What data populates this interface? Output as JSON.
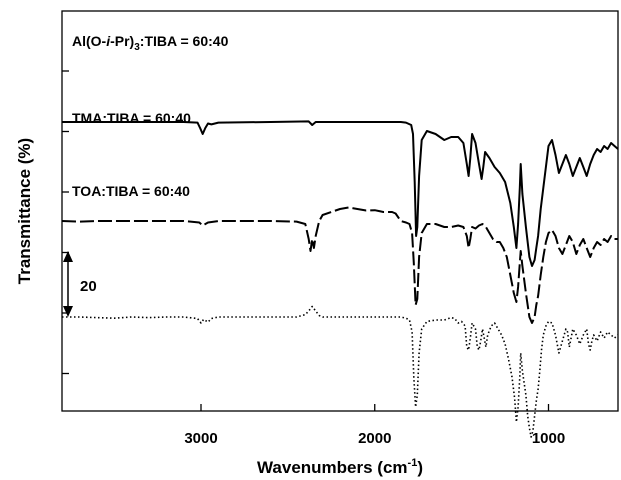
{
  "chart_data": {
    "type": "line",
    "title": "",
    "xlabel": "Wavenumbers (cm",
    "xlabel_sup": "-1",
    "xlabel_end": ")",
    "ylabel": "Transmittance (%)",
    "xlim": [
      3800,
      600
    ],
    "x_reversed": true,
    "x_ticks": [
      3000,
      2000,
      1000
    ],
    "x_tick_labels": [
      "3000",
      "2000",
      "1000"
    ],
    "y_tick_count": 6,
    "scale_bar_label": "20",
    "scale_bar_value": 20,
    "grid": false,
    "series": [
      {
        "label_parts": [
          "Al(O-",
          "i",
          "-Pr)",
          "3",
          ":TIBA = 60:40"
        ],
        "style": "solid",
        "color": "#000000",
        "points": [
          [
            3800,
            60
          ],
          [
            3600,
            60
          ],
          [
            3400,
            60
          ],
          [
            3100,
            60
          ],
          [
            3020,
            59.8
          ],
          [
            3005,
            58
          ],
          [
            2990,
            56
          ],
          [
            2975,
            58
          ],
          [
            2960,
            59.5
          ],
          [
            2940,
            59.2
          ],
          [
            2900,
            59.8
          ],
          [
            2600,
            60
          ],
          [
            2380,
            60.2
          ],
          [
            2360,
            59
          ],
          [
            2340,
            60
          ],
          [
            2200,
            60
          ],
          [
            2000,
            60
          ],
          [
            1850,
            60
          ],
          [
            1820,
            59.8
          ],
          [
            1790,
            59
          ],
          [
            1780,
            56
          ],
          [
            1770,
            40
          ],
          [
            1762,
            22
          ],
          [
            1755,
            25
          ],
          [
            1745,
            42
          ],
          [
            1730,
            54
          ],
          [
            1700,
            57
          ],
          [
            1650,
            56
          ],
          [
            1600,
            54
          ],
          [
            1560,
            55
          ],
          [
            1520,
            55
          ],
          [
            1490,
            53
          ],
          [
            1470,
            46
          ],
          [
            1460,
            42
          ],
          [
            1450,
            48
          ],
          [
            1440,
            56
          ],
          [
            1420,
            53
          ],
          [
            1400,
            46
          ],
          [
            1385,
            41
          ],
          [
            1375,
            45
          ],
          [
            1365,
            50
          ],
          [
            1340,
            48
          ],
          [
            1310,
            45
          ],
          [
            1280,
            43
          ],
          [
            1250,
            40
          ],
          [
            1220,
            33
          ],
          [
            1200,
            25
          ],
          [
            1185,
            18
          ],
          [
            1175,
            26
          ],
          [
            1165,
            38
          ],
          [
            1160,
            46
          ],
          [
            1150,
            36
          ],
          [
            1130,
            25
          ],
          [
            1110,
            15
          ],
          [
            1095,
            12
          ],
          [
            1080,
            14
          ],
          [
            1070,
            18
          ],
          [
            1060,
            22
          ],
          [
            1045,
            31
          ],
          [
            1030,
            38
          ],
          [
            1015,
            45
          ],
          [
            1000,
            52
          ],
          [
            980,
            54
          ],
          [
            960,
            49
          ],
          [
            940,
            43
          ],
          [
            920,
            46
          ],
          [
            900,
            49
          ],
          [
            880,
            46
          ],
          [
            860,
            42
          ],
          [
            840,
            45
          ],
          [
            820,
            48
          ],
          [
            800,
            45
          ],
          [
            780,
            42
          ],
          [
            760,
            46
          ],
          [
            740,
            49
          ],
          [
            720,
            51
          ],
          [
            700,
            50
          ],
          [
            680,
            52
          ],
          [
            660,
            51
          ],
          [
            640,
            53
          ],
          [
            620,
            52
          ],
          [
            600,
            51
          ]
        ]
      },
      {
        "label": "TMA:TIBA = 60:40",
        "style": "dashed",
        "color": "#000000",
        "points": [
          [
            3800,
            42
          ],
          [
            3700,
            41.8
          ],
          [
            3600,
            42
          ],
          [
            3400,
            42
          ],
          [
            3100,
            42
          ],
          [
            3010,
            41.5
          ],
          [
            2990,
            40.5
          ],
          [
            2960,
            41.5
          ],
          [
            2900,
            42
          ],
          [
            2600,
            42
          ],
          [
            2450,
            41.8
          ],
          [
            2400,
            41
          ],
          [
            2380,
            36
          ],
          [
            2370,
            32
          ],
          [
            2360,
            36
          ],
          [
            2350,
            33
          ],
          [
            2340,
            37
          ],
          [
            2320,
            42
          ],
          [
            2300,
            44
          ],
          [
            2250,
            45
          ],
          [
            2200,
            46
          ],
          [
            2150,
            46.5
          ],
          [
            2100,
            46
          ],
          [
            2050,
            45.5
          ],
          [
            2000,
            45.6
          ],
          [
            1950,
            45
          ],
          [
            1900,
            45
          ],
          [
            1880,
            44.5
          ],
          [
            1850,
            42
          ],
          [
            1820,
            41.5
          ],
          [
            1800,
            41
          ],
          [
            1785,
            38
          ],
          [
            1775,
            28
          ],
          [
            1765,
            14
          ],
          [
            1755,
            16
          ],
          [
            1745,
            30
          ],
          [
            1730,
            38
          ],
          [
            1700,
            41
          ],
          [
            1650,
            41
          ],
          [
            1600,
            40
          ],
          [
            1560,
            40
          ],
          [
            1520,
            40.5
          ],
          [
            1490,
            40
          ],
          [
            1470,
            37
          ],
          [
            1460,
            33
          ],
          [
            1450,
            36
          ],
          [
            1440,
            40
          ],
          [
            1420,
            39.5
          ],
          [
            1400,
            40.5
          ],
          [
            1380,
            41
          ],
          [
            1360,
            40
          ],
          [
            1340,
            38
          ],
          [
            1320,
            36
          ],
          [
            1300,
            35
          ],
          [
            1280,
            35
          ],
          [
            1260,
            33
          ],
          [
            1240,
            30
          ],
          [
            1220,
            24
          ],
          [
            1200,
            18
          ],
          [
            1185,
            15
          ],
          [
            1175,
            20
          ],
          [
            1165,
            28
          ],
          [
            1160,
            32
          ],
          [
            1150,
            27
          ],
          [
            1130,
            18
          ],
          [
            1110,
            10
          ],
          [
            1095,
            8
          ],
          [
            1080,
            10
          ],
          [
            1070,
            14
          ],
          [
            1060,
            17
          ],
          [
            1045,
            24
          ],
          [
            1030,
            30
          ],
          [
            1015,
            35
          ],
          [
            1000,
            38
          ],
          [
            980,
            39
          ],
          [
            960,
            37
          ],
          [
            940,
            33
          ],
          [
            920,
            31
          ],
          [
            900,
            34
          ],
          [
            880,
            37
          ],
          [
            860,
            35
          ],
          [
            840,
            31
          ],
          [
            820,
            34
          ],
          [
            800,
            36
          ],
          [
            780,
            33
          ],
          [
            760,
            30
          ],
          [
            740,
            33
          ],
          [
            720,
            35
          ],
          [
            700,
            34
          ],
          [
            680,
            36
          ],
          [
            660,
            35
          ],
          [
            640,
            37
          ],
          [
            620,
            36
          ],
          [
            600,
            36
          ]
        ]
      },
      {
        "label": "TOA:TIBA = 60:40",
        "style": "dotted",
        "color": "#000000",
        "points": [
          [
            3800,
            30
          ],
          [
            3700,
            30
          ],
          [
            3600,
            29.8
          ],
          [
            3500,
            29.6
          ],
          [
            3400,
            30
          ],
          [
            3300,
            29.8
          ],
          [
            3200,
            30
          ],
          [
            3100,
            30
          ],
          [
            3020,
            29.5
          ],
          [
            3000,
            28
          ],
          [
            2985,
            29.2
          ],
          [
            2960,
            28.3
          ],
          [
            2940,
            29.5
          ],
          [
            2900,
            30
          ],
          [
            2600,
            30
          ],
          [
            2450,
            30
          ],
          [
            2400,
            30.8
          ],
          [
            2380,
            32
          ],
          [
            2360,
            33.5
          ],
          [
            2340,
            32
          ],
          [
            2320,
            30.5
          ],
          [
            2300,
            30
          ],
          [
            2200,
            30
          ],
          [
            2000,
            30
          ],
          [
            1900,
            30
          ],
          [
            1850,
            30
          ],
          [
            1820,
            29.6
          ],
          [
            1800,
            29
          ],
          [
            1785,
            25
          ],
          [
            1775,
            10
          ],
          [
            1765,
            0
          ],
          [
            1755,
            4
          ],
          [
            1745,
            18
          ],
          [
            1730,
            26
          ],
          [
            1700,
            28.5
          ],
          [
            1650,
            29
          ],
          [
            1600,
            29
          ],
          [
            1560,
            29.8
          ],
          [
            1540,
            29.5
          ],
          [
            1520,
            28
          ],
          [
            1500,
            28.5
          ],
          [
            1480,
            27
          ],
          [
            1470,
            20
          ],
          [
            1460,
            19
          ],
          [
            1450,
            23
          ],
          [
            1440,
            28
          ],
          [
            1420,
            26
          ],
          [
            1410,
            20
          ],
          [
            1400,
            19
          ],
          [
            1390,
            22
          ],
          [
            1380,
            26
          ],
          [
            1370,
            23
          ],
          [
            1360,
            20
          ],
          [
            1350,
            24
          ],
          [
            1330,
            27
          ],
          [
            1310,
            28
          ],
          [
            1290,
            26
          ],
          [
            1270,
            24
          ],
          [
            1250,
            21
          ],
          [
            1230,
            16
          ],
          [
            1210,
            10
          ],
          [
            1195,
            3
          ],
          [
            1185,
            -5
          ],
          [
            1175,
            0
          ],
          [
            1165,
            10
          ],
          [
            1160,
            18
          ],
          [
            1150,
            12
          ],
          [
            1130,
            4
          ],
          [
            1120,
            -3
          ],
          [
            1110,
            -7
          ],
          [
            1100,
            -10
          ],
          [
            1090,
            -8
          ],
          [
            1080,
            -3
          ],
          [
            1070,
            2
          ],
          [
            1060,
            6
          ],
          [
            1050,
            12
          ],
          [
            1040,
            19
          ],
          [
            1030,
            24
          ],
          [
            1015,
            27
          ],
          [
            1000,
            28.5
          ],
          [
            980,
            28
          ],
          [
            960,
            24
          ],
          [
            940,
            18
          ],
          [
            920,
            22
          ],
          [
            900,
            26
          ],
          [
            890,
            25
          ],
          [
            880,
            20
          ],
          [
            870,
            23
          ],
          [
            860,
            26
          ],
          [
            840,
            24
          ],
          [
            820,
            21
          ],
          [
            800,
            24
          ],
          [
            780,
            26
          ],
          [
            770,
            21
          ],
          [
            760,
            19
          ],
          [
            750,
            22
          ],
          [
            740,
            24
          ],
          [
            720,
            22
          ],
          [
            700,
            25
          ],
          [
            680,
            23
          ],
          [
            660,
            25
          ],
          [
            640,
            24
          ],
          [
            620,
            23
          ],
          [
            600,
            24
          ]
        ]
      }
    ]
  }
}
